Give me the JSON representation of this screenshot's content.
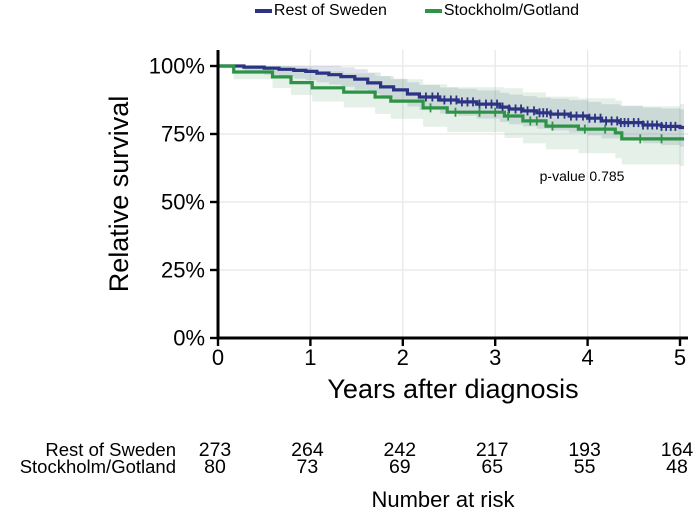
{
  "legend": {
    "items": [
      {
        "label": "Rest of Sweden",
        "color": "#2d3384"
      },
      {
        "label": "Stockholm/Gotland",
        "color": "#2e9346"
      }
    ]
  },
  "chart_data": {
    "type": "line",
    "subtype": "kaplan-meier-relative-survival",
    "title": "",
    "xlabel": "Years after diagnosis",
    "ylabel": "Relative survival",
    "xlim": [
      0,
      5
    ],
    "ylim": [
      0,
      100
    ],
    "grid": true,
    "legend_position": "top",
    "xticks": [
      0,
      1,
      2,
      3,
      4,
      5
    ],
    "yticks": [
      {
        "value": 0,
        "label": "0%"
      },
      {
        "value": 25,
        "label": "25%"
      },
      {
        "value": 50,
        "label": "50%"
      },
      {
        "value": 75,
        "label": "75%"
      },
      {
        "value": 100,
        "label": "100%"
      }
    ],
    "annotation": {
      "text": "p-value 0.785",
      "x": 3.94,
      "y": 57.7
    },
    "series": [
      {
        "name": "Rest of Sweden",
        "color": "#2d3384",
        "band_color": "rgba(75,92,140,0.17)",
        "steps": [
          [
            0,
            100
          ],
          [
            0.28,
            99.6
          ],
          [
            0.5,
            99.2
          ],
          [
            0.66,
            98.8
          ],
          [
            0.82,
            98.4
          ],
          [
            0.95,
            98.0
          ],
          [
            1.07,
            97.4
          ],
          [
            1.2,
            96.8
          ],
          [
            1.33,
            96.1
          ],
          [
            1.48,
            95.2
          ],
          [
            1.62,
            93.8
          ],
          [
            1.76,
            92.3
          ],
          [
            1.9,
            91.2
          ],
          [
            2.05,
            89.7
          ],
          [
            2.18,
            88.6
          ],
          [
            2.4,
            87.5
          ],
          [
            2.6,
            86.8
          ],
          [
            2.8,
            86.0
          ],
          [
            3.05,
            84.9
          ],
          [
            3.15,
            84.2
          ],
          [
            3.3,
            83.5
          ],
          [
            3.45,
            82.8
          ],
          [
            3.6,
            82.3
          ],
          [
            3.8,
            81.6
          ],
          [
            4.0,
            80.8
          ],
          [
            4.15,
            79.8
          ],
          [
            4.35,
            79.2
          ],
          [
            4.6,
            78.3
          ],
          [
            4.8,
            77.8
          ],
          [
            5.0,
            77.4
          ]
        ],
        "censor_times": [
          2.25,
          2.32,
          2.38,
          2.45,
          2.52,
          2.58,
          2.64,
          2.7,
          2.76,
          2.83,
          2.9,
          2.96,
          3.02,
          3.08,
          3.15,
          3.22,
          3.28,
          3.35,
          3.42,
          3.48,
          3.52,
          3.56,
          3.6,
          3.68,
          3.75,
          3.82,
          3.88,
          3.95,
          4.02,
          4.08,
          4.14,
          4.2,
          4.26,
          4.32,
          4.36,
          4.4,
          4.44,
          4.5,
          4.55,
          4.6,
          4.65,
          4.7,
          4.75,
          4.8,
          4.85,
          4.9,
          4.95
        ],
        "band": {
          "upper_base": 0.0,
          "upper_k": 3.0,
          "lower_base": 0.3,
          "lower_k": 3.0
        }
      },
      {
        "name": "Stockholm/Gotland",
        "color": "#2e9346",
        "band_color": "rgba(70,155,90,0.14)",
        "steps": [
          [
            0,
            100
          ],
          [
            0.17,
            97.8
          ],
          [
            0.59,
            96.0
          ],
          [
            0.79,
            93.9
          ],
          [
            1.02,
            92.0
          ],
          [
            1.36,
            90.4
          ],
          [
            1.7,
            88.6
          ],
          [
            1.87,
            87.1
          ],
          [
            2.22,
            84.6
          ],
          [
            2.48,
            83.0
          ],
          [
            3.1,
            81.6
          ],
          [
            3.3,
            79.8
          ],
          [
            3.55,
            77.9
          ],
          [
            3.9,
            76.8
          ],
          [
            4.3,
            75.4
          ],
          [
            4.37,
            73.2
          ],
          [
            5.0,
            73.2
          ]
        ],
        "censor_times": [
          2.3,
          2.57,
          2.83,
          3.0,
          3.14,
          3.38,
          3.45,
          3.62,
          3.97,
          4.19,
          4.57,
          4.8
        ],
        "band": {
          "upper_base": 0.5,
          "upper_k": 5.5,
          "lower_base": 1.0,
          "lower_k": 4.0
        }
      }
    ]
  },
  "risk_table": {
    "title": "Number at risk",
    "rows": [
      {
        "label": "Rest of Sweden",
        "values": [
          273,
          264,
          242,
          217,
          193,
          164
        ]
      },
      {
        "label": "Stockholm/Gotland",
        "values": [
          80,
          73,
          69,
          65,
          55,
          48
        ]
      }
    ]
  }
}
